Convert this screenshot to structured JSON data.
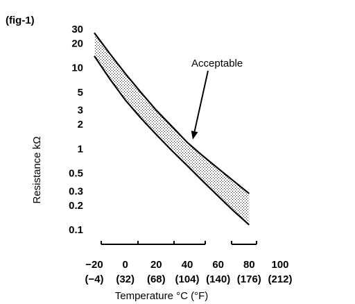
{
  "figure_label": "(fig-1)",
  "chart_data": {
    "type": "area",
    "title": "",
    "xlabel": "Temperature °C (°F)",
    "ylabel": "Resistance kΩ",
    "x_unit": "°C",
    "y_unit": "kΩ",
    "y_scale": "log",
    "xlim": [
      -20,
      100
    ],
    "ylim": [
      0.1,
      30
    ],
    "grid": false,
    "x_ticks": [
      {
        "value": -20,
        "label": "−20",
        "sublabel": "(−4)"
      },
      {
        "value": 0,
        "label": "0",
        "sublabel": "(32)"
      },
      {
        "value": 20,
        "label": "20",
        "sublabel": "(68)"
      },
      {
        "value": 40,
        "label": "40",
        "sublabel": "(104)"
      },
      {
        "value": 60,
        "label": "60",
        "sublabel": "(140)"
      },
      {
        "value": 80,
        "label": "80",
        "sublabel": "(176)"
      },
      {
        "value": 100,
        "label": "100",
        "sublabel": "(212)"
      }
    ],
    "y_ticks": [
      {
        "value": 30,
        "label": "30"
      },
      {
        "value": 20,
        "label": "20"
      },
      {
        "value": 10,
        "label": "10"
      },
      {
        "value": 5,
        "label": "5"
      },
      {
        "value": 3,
        "label": "3"
      },
      {
        "value": 2,
        "label": "2"
      },
      {
        "value": 1,
        "label": "1"
      },
      {
        "value": 0.5,
        "label": "0.5"
      },
      {
        "value": 0.3,
        "label": "0.3"
      },
      {
        "value": 0.2,
        "label": "0.2"
      },
      {
        "value": 0.1,
        "label": "0.1"
      }
    ],
    "series": [
      {
        "x": [
          -20,
          -10,
          0,
          10,
          20,
          30,
          40,
          50,
          60,
          70,
          80
        ],
        "values": [
          27,
          15,
          8.5,
          5.0,
          3.0,
          1.9,
          1.2,
          0.82,
          0.57,
          0.4,
          0.28
        ]
      },
      {
        "x": [
          -20,
          -10,
          0,
          10,
          20,
          30,
          40,
          50,
          60,
          70,
          80
        ],
        "values": [
          14,
          7.3,
          4.0,
          2.4,
          1.5,
          0.95,
          0.62,
          0.4,
          0.26,
          0.17,
          0.115
        ]
      }
    ],
    "band": {
      "between_series": [
        0,
        1
      ],
      "fill": "dotted"
    },
    "annotations": [
      {
        "text": "Acceptable",
        "points_to": {
          "x": 40,
          "y": 1.3
        }
      }
    ],
    "colors": {
      "line": "#000000",
      "band_fill": "#000000",
      "background": "#ffffff"
    }
  }
}
